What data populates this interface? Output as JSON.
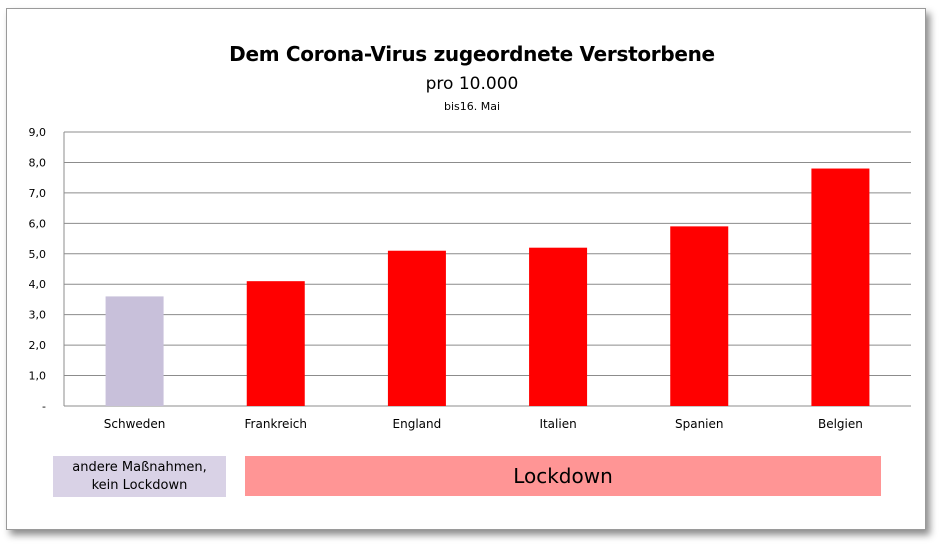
{
  "chart_data": {
    "type": "bar",
    "title": "Dem Corona-Virus zugeordnete Verstorbene",
    "subtitle": "pro 10.000",
    "note": "bis16. Mai",
    "categories": [
      "Schweden",
      "Frankreich",
      "England",
      "Italien",
      "Spanien",
      "Belgien"
    ],
    "values": [
      3.6,
      4.1,
      5.1,
      5.2,
      5.9,
      7.8
    ],
    "colors": [
      "#c8c0da",
      "#ff0000",
      "#ff0000",
      "#ff0000",
      "#ff0000",
      "#ff0000"
    ],
    "ylim": [
      0,
      9
    ],
    "yticks": [
      "-",
      "1,0",
      "2,0",
      "3,0",
      "4,0",
      "5,0",
      "6,0",
      "7,0",
      "8,0",
      "9,0"
    ],
    "grid": true
  },
  "legend": {
    "sweden_line1": "andere Maßnahmen,",
    "sweden_line2": "kein Lockdown",
    "sweden_color": "#d9d2e6",
    "lockdown": "Lockdown",
    "lockdown_color": "#ff9595"
  }
}
